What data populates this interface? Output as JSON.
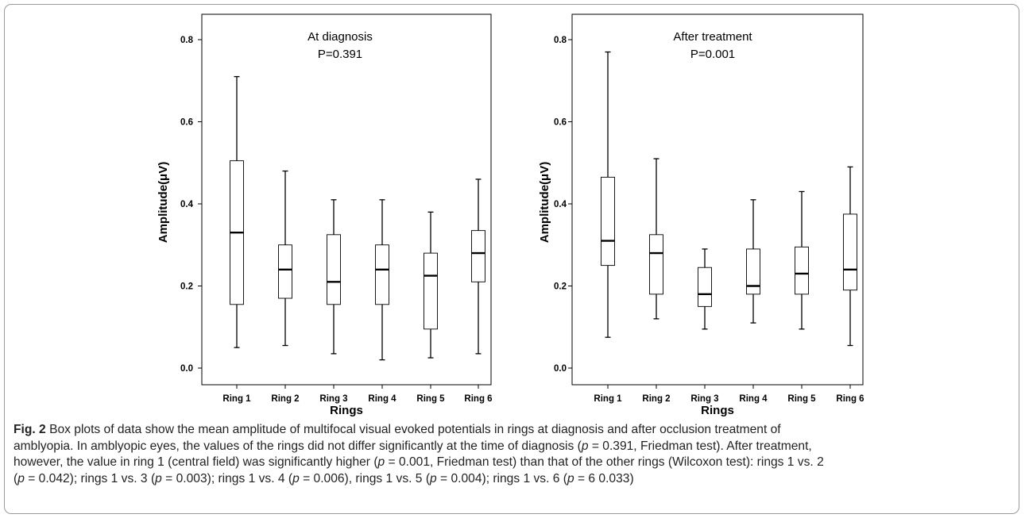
{
  "chart_data": [
    {
      "type": "box",
      "title": "At diagnosis",
      "subtitle": "P=0.391",
      "xlabel": "Rings",
      "ylabel": "Amplitude(μV)",
      "ylim": [
        0.0,
        0.8
      ],
      "yticks": [
        "0.0",
        "0.2",
        "0.4",
        "0.6",
        "0.8"
      ],
      "categories": [
        "Ring 1",
        "Ring 2",
        "Ring 3",
        "Ring 4",
        "Ring 5",
        "Ring 6"
      ],
      "boxes": [
        {
          "min": 0.05,
          "q1": 0.155,
          "median": 0.33,
          "q3": 0.505,
          "max": 0.71
        },
        {
          "min": 0.055,
          "q1": 0.17,
          "median": 0.24,
          "q3": 0.3,
          "max": 0.48
        },
        {
          "min": 0.035,
          "q1": 0.155,
          "median": 0.21,
          "q3": 0.325,
          "max": 0.41
        },
        {
          "min": 0.02,
          "q1": 0.155,
          "median": 0.24,
          "q3": 0.3,
          "max": 0.41
        },
        {
          "min": 0.025,
          "q1": 0.095,
          "median": 0.225,
          "q3": 0.28,
          "max": 0.38
        },
        {
          "min": 0.035,
          "q1": 0.21,
          "median": 0.28,
          "q3": 0.335,
          "max": 0.46
        }
      ],
      "grid": false,
      "legend": "none"
    },
    {
      "type": "box",
      "title": "After treatment",
      "subtitle": "P=0.001",
      "xlabel": "Rings",
      "ylabel": "Amplitude(μV)",
      "ylim": [
        0.0,
        0.8
      ],
      "yticks": [
        "0.0",
        "0.2",
        "0.4",
        "0.6",
        "0.8"
      ],
      "categories": [
        "Ring 1",
        "Ring 2",
        "Ring 3",
        "Ring 4",
        "Ring 5",
        "Ring 6"
      ],
      "boxes": [
        {
          "min": 0.075,
          "q1": 0.25,
          "median": 0.31,
          "q3": 0.465,
          "max": 0.77
        },
        {
          "min": 0.12,
          "q1": 0.18,
          "median": 0.28,
          "q3": 0.325,
          "max": 0.51
        },
        {
          "min": 0.095,
          "q1": 0.15,
          "median": 0.18,
          "q3": 0.245,
          "max": 0.29
        },
        {
          "min": 0.11,
          "q1": 0.18,
          "median": 0.2,
          "q3": 0.29,
          "max": 0.41
        },
        {
          "min": 0.095,
          "q1": 0.18,
          "median": 0.23,
          "q3": 0.295,
          "max": 0.43
        },
        {
          "min": 0.055,
          "q1": 0.19,
          "median": 0.24,
          "q3": 0.375,
          "max": 0.49
        }
      ],
      "grid": false,
      "legend": "none"
    }
  ],
  "caption": {
    "label": "Fig. 2",
    "line1": "Box plots of data show the mean amplitude of multifocal visual evoked potentials in rings at diagnosis and after occlusion treatment of",
    "line2_pre": "amblyopia. In amblyopic eyes, the values of the rings did not differ significantly at the time of diagnosis (",
    "line2_p": "p",
    "line2_post": " = 0.391, Friedman test). After treatment,",
    "line3_pre": "however, the value in ring 1 (central field) was significantly higher (",
    "line3_p": "p",
    "line3_post": " = 0.001, Friedman test) than that of the other rings (Wilcoxon test): rings 1 vs. 2",
    "line4_a_pre": "(",
    "line4_a_p": "p",
    "line4_a_post": " = 0.042); rings 1 vs. 3 (",
    "line4_b_p": "p",
    "line4_b_post": " = 0.003); rings 1 vs. 4 (",
    "line4_c_p": "p",
    "line4_c_post": " = 0.006), rings 1 vs. 5 (",
    "line4_d_p": "p",
    "line4_d_post": " = 0.004); rings 1 vs. 6 (",
    "line4_e_p": "p",
    "line4_e_post": " = 6 0.033)"
  }
}
